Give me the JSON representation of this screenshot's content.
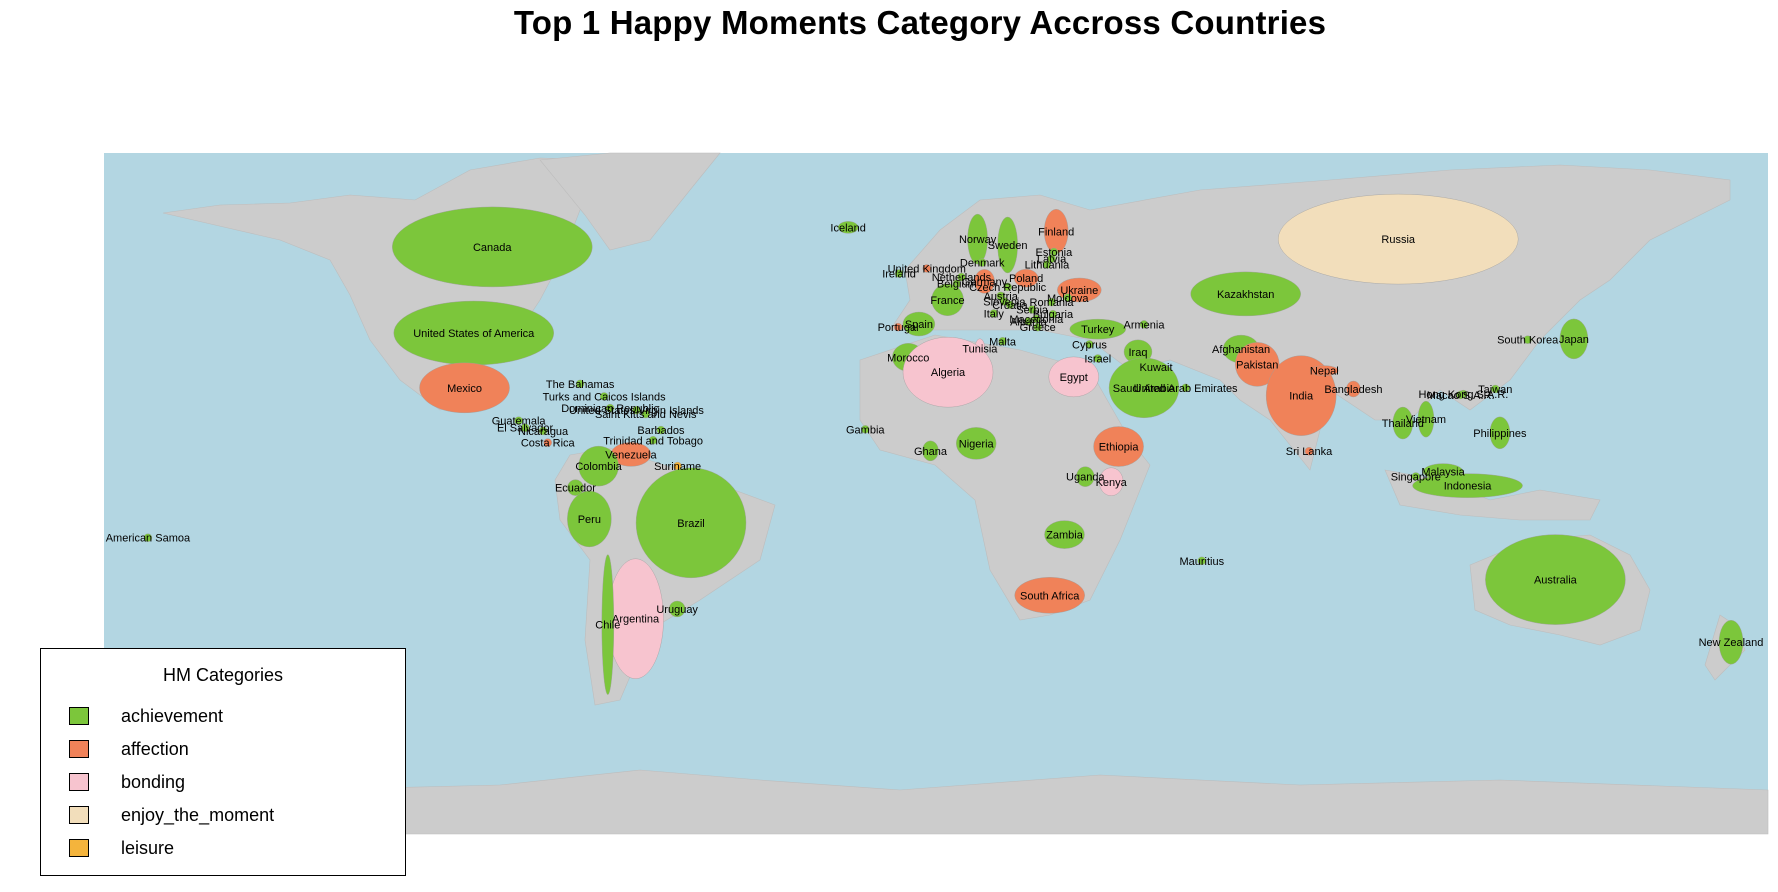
{
  "title": "Top 1 Happy Moments Category Accross Countries",
  "colors": {
    "ocean": "#b3d6e2",
    "land": "#cccccc",
    "achievement": "#7cc63b",
    "affection": "#f08259",
    "bonding": "#f7c4cf",
    "enjoy_the_moment": "#f2debb",
    "leisure": "#f4b43c"
  },
  "legend": {
    "title": "HM Categories",
    "items": [
      {
        "label": "achievement",
        "key": "achievement"
      },
      {
        "label": "affection",
        "key": "affection"
      },
      {
        "label": "bonding",
        "key": "bonding"
      },
      {
        "label": "enjoy_the_moment",
        "key": "enjoy_the_moment"
      },
      {
        "label": "leisure",
        "key": "leisure"
      }
    ]
  },
  "countries": [
    {
      "name": "Canada",
      "lon": -96,
      "lat": 60,
      "category": "achievement"
    },
    {
      "name": "United States of America",
      "lon": -100,
      "lat": 38,
      "category": "achievement"
    },
    {
      "name": "Mexico",
      "lon": -102,
      "lat": 24,
      "category": "affection"
    },
    {
      "name": "The Bahamas",
      "lon": -77,
      "lat": 25,
      "category": "achievement"
    },
    {
      "name": "Turks and Caicos Islands",
      "lon": -71.8,
      "lat": 21.8,
      "category": "achievement"
    },
    {
      "name": "Dominican Republic",
      "lon": -70.5,
      "lat": 18.8,
      "category": "achievement"
    },
    {
      "name": "United States Virgin Islands",
      "lon": -64.8,
      "lat": 18.3,
      "category": "achievement"
    },
    {
      "name": "Saint Kitts and Nevis",
      "lon": -62.8,
      "lat": 17.3,
      "category": "achievement"
    },
    {
      "name": "Guatemala",
      "lon": -90.3,
      "lat": 15.6,
      "category": "achievement"
    },
    {
      "name": "El Salvador",
      "lon": -88.9,
      "lat": 13.8,
      "category": "achievement"
    },
    {
      "name": "Nicaragua",
      "lon": -85,
      "lat": 13,
      "category": "achievement"
    },
    {
      "name": "Costa Rica",
      "lon": -84,
      "lat": 10,
      "category": "affection"
    },
    {
      "name": "Barbados",
      "lon": -59.5,
      "lat": 13.2,
      "category": "achievement"
    },
    {
      "name": "Trinidad and Tobago",
      "lon": -61.2,
      "lat": 10.6,
      "category": "achievement"
    },
    {
      "name": "Venezuela",
      "lon": -66,
      "lat": 7,
      "category": "affection"
    },
    {
      "name": "Colombia",
      "lon": -73,
      "lat": 4,
      "category": "achievement"
    },
    {
      "name": "Suriname",
      "lon": -55.9,
      "lat": 4,
      "category": "leisure"
    },
    {
      "name": "Ecuador",
      "lon": -78,
      "lat": -1.5,
      "category": "achievement"
    },
    {
      "name": "Peru",
      "lon": -75,
      "lat": -9.5,
      "category": "achievement"
    },
    {
      "name": "Brazil",
      "lon": -53,
      "lat": -10.5,
      "category": "achievement"
    },
    {
      "name": "Argentina",
      "lon": -65,
      "lat": -35,
      "category": "bonding"
    },
    {
      "name": "Chile",
      "lon": -71,
      "lat": -36.5,
      "category": "achievement"
    },
    {
      "name": "Uruguay",
      "lon": -56,
      "lat": -32.5,
      "category": "achievement"
    },
    {
      "name": "American Samoa",
      "lon": -170.5,
      "lat": -14.3,
      "category": "achievement"
    },
    {
      "name": "Iceland",
      "lon": -19,
      "lat": 65,
      "category": "achievement"
    },
    {
      "name": "Ireland",
      "lon": -8,
      "lat": 53.2,
      "category": "achievement"
    },
    {
      "name": "United Kingdom",
      "lon": -2,
      "lat": 54.5,
      "category": "affection"
    },
    {
      "name": "Norway",
      "lon": 9,
      "lat": 62,
      "category": "achievement"
    },
    {
      "name": "Sweden",
      "lon": 15.5,
      "lat": 60.5,
      "category": "achievement"
    },
    {
      "name": "Finland",
      "lon": 26,
      "lat": 64,
      "category": "affection"
    },
    {
      "name": "Denmark",
      "lon": 10,
      "lat": 56,
      "category": "achievement"
    },
    {
      "name": "Estonia",
      "lon": 25.5,
      "lat": 58.7,
      "category": "achievement"
    },
    {
      "name": "Latvia",
      "lon": 25,
      "lat": 57,
      "category": "achievement"
    },
    {
      "name": "Lithuania",
      "lon": 24,
      "lat": 55.5,
      "category": "achievement"
    },
    {
      "name": "Netherlands",
      "lon": 5.5,
      "lat": 52.3,
      "category": "achievement"
    },
    {
      "name": "Belgium",
      "lon": 4.5,
      "lat": 50.6,
      "category": "achievement"
    },
    {
      "name": "Germany",
      "lon": 10.5,
      "lat": 51.2,
      "category": "affection"
    },
    {
      "name": "Poland",
      "lon": 19.5,
      "lat": 52,
      "category": "affection"
    },
    {
      "name": "Czech Republic",
      "lon": 15.5,
      "lat": 49.8,
      "category": "achievement"
    },
    {
      "name": "Ukraine",
      "lon": 31,
      "lat": 49,
      "category": "affection"
    },
    {
      "name": "Austria",
      "lon": 14,
      "lat": 47.5,
      "category": "achievement"
    },
    {
      "name": "Moldova",
      "lon": 28.5,
      "lat": 47,
      "category": "achievement"
    },
    {
      "name": "France",
      "lon": 2.5,
      "lat": 46.5,
      "category": "achievement"
    },
    {
      "name": "Slovenia",
      "lon": 14.8,
      "lat": 46.1,
      "category": "achievement"
    },
    {
      "name": "Croatia",
      "lon": 16,
      "lat": 45.2,
      "category": "achievement"
    },
    {
      "name": "Romania",
      "lon": 25,
      "lat": 45.9,
      "category": "achievement"
    },
    {
      "name": "Serbia",
      "lon": 20.8,
      "lat": 44,
      "category": "achievement"
    },
    {
      "name": "Bulgaria",
      "lon": 25.3,
      "lat": 42.8,
      "category": "achievement"
    },
    {
      "name": "Italy",
      "lon": 12.5,
      "lat": 43,
      "category": "achievement"
    },
    {
      "name": "Macedonia",
      "lon": 21.7,
      "lat": 41.6,
      "category": "achievement"
    },
    {
      "name": "Albania",
      "lon": 20,
      "lat": 41,
      "category": "achievement"
    },
    {
      "name": "Greece",
      "lon": 22,
      "lat": 39.5,
      "category": "achievement"
    },
    {
      "name": "Spain",
      "lon": -3.7,
      "lat": 40.3,
      "category": "achievement"
    },
    {
      "name": "Portugal",
      "lon": -8.2,
      "lat": 39.5,
      "category": "affection"
    },
    {
      "name": "Turkey",
      "lon": 35,
      "lat": 39,
      "category": "achievement"
    },
    {
      "name": "Armenia",
      "lon": 45,
      "lat": 40.2,
      "category": "achievement"
    },
    {
      "name": "Malta",
      "lon": 14.4,
      "lat": 35.9,
      "category": "achievement"
    },
    {
      "name": "Tunisia",
      "lon": 9.5,
      "lat": 34,
      "category": "bonding"
    },
    {
      "name": "Cyprus",
      "lon": 33.2,
      "lat": 35.1,
      "category": "achievement"
    },
    {
      "name": "Morocco",
      "lon": -6,
      "lat": 31.8,
      "category": "achievement"
    },
    {
      "name": "Algeria",
      "lon": 2.6,
      "lat": 28,
      "category": "bonding"
    },
    {
      "name": "Egypt",
      "lon": 29.8,
      "lat": 26.8,
      "category": "bonding"
    },
    {
      "name": "Israel",
      "lon": 35,
      "lat": 31.5,
      "category": "achievement"
    },
    {
      "name": "Iraq",
      "lon": 43.7,
      "lat": 33.2,
      "category": "achievement"
    },
    {
      "name": "Kuwait",
      "lon": 47.6,
      "lat": 29.3,
      "category": "achievement"
    },
    {
      "name": "Saudi Arabia",
      "lon": 45,
      "lat": 24,
      "category": "achievement"
    },
    {
      "name": "United Arab Emirates",
      "lon": 54,
      "lat": 24,
      "category": "achievement"
    },
    {
      "name": "Afghanistan",
      "lon": 66,
      "lat": 33.9,
      "category": "achievement"
    },
    {
      "name": "Pakistan",
      "lon": 69.5,
      "lat": 30,
      "category": "affection"
    },
    {
      "name": "India",
      "lon": 79,
      "lat": 22,
      "category": "affection"
    },
    {
      "name": "Nepal",
      "lon": 84,
      "lat": 28.4,
      "category": "affection"
    },
    {
      "name": "Bangladesh",
      "lon": 90.3,
      "lat": 23.7,
      "category": "affection"
    },
    {
      "name": "Sri Lanka",
      "lon": 80.7,
      "lat": 7.8,
      "category": "affection"
    },
    {
      "name": "Kazakhstan",
      "lon": 67,
      "lat": 48,
      "category": "achievement"
    },
    {
      "name": "Russia",
      "lon": 100,
      "lat": 62,
      "category": "enjoy_the_moment"
    },
    {
      "name": "Gambia",
      "lon": -15.3,
      "lat": 13.4,
      "category": "achievement"
    },
    {
      "name": "Ghana",
      "lon": -1.2,
      "lat": 7.9,
      "category": "achievement"
    },
    {
      "name": "Nigeria",
      "lon": 8.7,
      "lat": 9.8,
      "category": "achievement"
    },
    {
      "name": "Ethiopia",
      "lon": 39.5,
      "lat": 9,
      "category": "affection"
    },
    {
      "name": "Uganda",
      "lon": 32.3,
      "lat": 1.3,
      "category": "achievement"
    },
    {
      "name": "Kenya",
      "lon": 37.9,
      "lat": 0,
      "category": "bonding"
    },
    {
      "name": "Zambia",
      "lon": 27.8,
      "lat": -13.5,
      "category": "achievement"
    },
    {
      "name": "South Africa",
      "lon": 24.6,
      "lat": -29,
      "category": "affection"
    },
    {
      "name": "Mauritius",
      "lon": 57.5,
      "lat": -20.2,
      "category": "achievement"
    },
    {
      "name": "Hong Kong S.A.R.",
      "lon": 114.1,
      "lat": 22.4,
      "category": "achievement"
    },
    {
      "name": "Macao S.A.R.",
      "lon": 113.5,
      "lat": 22.2,
      "category": "achievement"
    },
    {
      "name": "Taiwan",
      "lon": 121,
      "lat": 23.7,
      "category": "achievement"
    },
    {
      "name": "Vietnam",
      "lon": 106,
      "lat": 16,
      "category": "achievement"
    },
    {
      "name": "Thailand",
      "lon": 101,
      "lat": 15,
      "category": "achievement"
    },
    {
      "name": "Philippines",
      "lon": 122,
      "lat": 12.5,
      "category": "achievement"
    },
    {
      "name": "Malaysia",
      "lon": 109.7,
      "lat": 2.6,
      "category": "achievement"
    },
    {
      "name": "Singapore",
      "lon": 103.8,
      "lat": 1.35,
      "category": "achievement"
    },
    {
      "name": "Indonesia",
      "lon": 115,
      "lat": -1,
      "category": "achievement"
    },
    {
      "name": "South Korea",
      "lon": 128,
      "lat": 36.3,
      "category": "achievement"
    },
    {
      "name": "Japan",
      "lon": 138,
      "lat": 36.5,
      "category": "achievement"
    },
    {
      "name": "Australia",
      "lon": 134,
      "lat": -25,
      "category": "achievement"
    },
    {
      "name": "New Zealand",
      "lon": 172,
      "lat": -41,
      "category": "achievement"
    }
  ]
}
